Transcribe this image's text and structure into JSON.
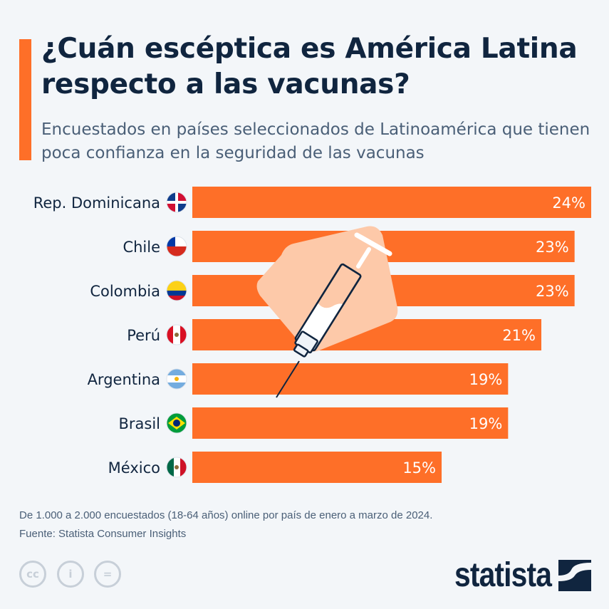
{
  "title": "¿Cuán escéptica es América Latina respecto a las vacunas?",
  "subtitle": "Encuestados en países seleccionados de Latinoamérica que tienen poca confianza en la seguridad de las vacunas",
  "colors": {
    "bar": "#fe6f28",
    "title": "#10253f",
    "illustration_bg": "#fdc9a9"
  },
  "chart_data": {
    "type": "bar",
    "orientation": "horizontal",
    "categories": [
      "Rep. Dominicana",
      "Chile",
      "Colombia",
      "Perú",
      "Argentina",
      "Brasil",
      "México"
    ],
    "values": [
      24,
      23,
      23,
      21,
      19,
      19,
      15
    ],
    "value_labels": [
      "24%",
      "23%",
      "23%",
      "21%",
      "19%",
      "19%",
      "15%"
    ],
    "unit": "%",
    "icons": [
      "flag-dominican-republic-icon",
      "flag-chile-icon",
      "flag-colombia-icon",
      "flag-peru-icon",
      "flag-argentina-icon",
      "flag-brazil-icon",
      "flag-mexico-icon"
    ],
    "grid": false
  },
  "footer": {
    "note": "De 1.000 a 2.000 encuestados (18-64 años) online por país de enero a marzo de 2024.",
    "source": "Fuente: Statista Consumer Insights",
    "brand": "statista"
  }
}
